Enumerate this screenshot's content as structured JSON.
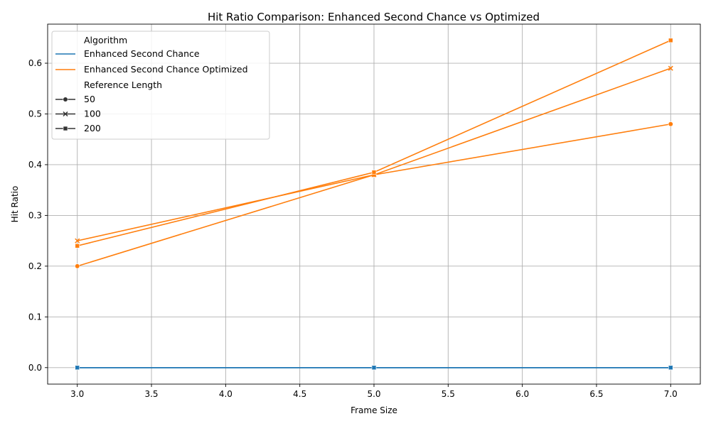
{
  "chart_data": {
    "type": "line",
    "title": "Hit Ratio Comparison: Enhanced Second Chance vs Optimized",
    "xlabel": "Frame Size",
    "ylabel": "Hit Ratio",
    "xlim": [
      2.8,
      7.2
    ],
    "ylim": [
      -0.0325,
      0.677
    ],
    "xticks": [
      "3.0",
      "3.5",
      "4.0",
      "4.5",
      "5.0",
      "5.5",
      "6.0",
      "6.5",
      "7.0"
    ],
    "yticks": [
      "0.0",
      "0.1",
      "0.2",
      "0.3",
      "0.4",
      "0.5",
      "0.6"
    ],
    "grid": true,
    "legend_position": "upper-left",
    "legend": {
      "hue_title": "Algorithm",
      "style_title": "Reference Length",
      "styles": [
        {
          "label": "50",
          "marker": "circle"
        },
        {
          "label": "100",
          "marker": "x"
        },
        {
          "label": "200",
          "marker": "square"
        }
      ]
    },
    "series": [
      {
        "algorithm": "Enhanced Second Chance",
        "ref_length": "50",
        "marker": "circle",
        "color": "#1f77b4",
        "x": [
          3,
          5,
          7
        ],
        "y": [
          0.0,
          0.0,
          0.0
        ]
      },
      {
        "algorithm": "Enhanced Second Chance",
        "ref_length": "100",
        "marker": "x",
        "color": "#1f77b4",
        "x": [
          3,
          5,
          7
        ],
        "y": [
          0.0,
          0.0,
          0.0
        ]
      },
      {
        "algorithm": "Enhanced Second Chance",
        "ref_length": "200",
        "marker": "square",
        "color": "#1f77b4",
        "x": [
          3,
          5,
          7
        ],
        "y": [
          0.0,
          0.0,
          0.0
        ]
      },
      {
        "algorithm": "Enhanced Second Chance Optimized",
        "ref_length": "50",
        "marker": "circle",
        "color": "#ff7f0e",
        "x": [
          3,
          5,
          7
        ],
        "y": [
          0.2,
          0.38,
          0.48
        ]
      },
      {
        "algorithm": "Enhanced Second Chance Optimized",
        "ref_length": "100",
        "marker": "x",
        "color": "#ff7f0e",
        "x": [
          3,
          5,
          7
        ],
        "y": [
          0.25,
          0.38,
          0.59
        ]
      },
      {
        "algorithm": "Enhanced Second Chance Optimized",
        "ref_length": "200",
        "marker": "square",
        "color": "#ff7f0e",
        "x": [
          3,
          5,
          7
        ],
        "y": [
          0.24,
          0.385,
          0.645
        ]
      }
    ]
  }
}
